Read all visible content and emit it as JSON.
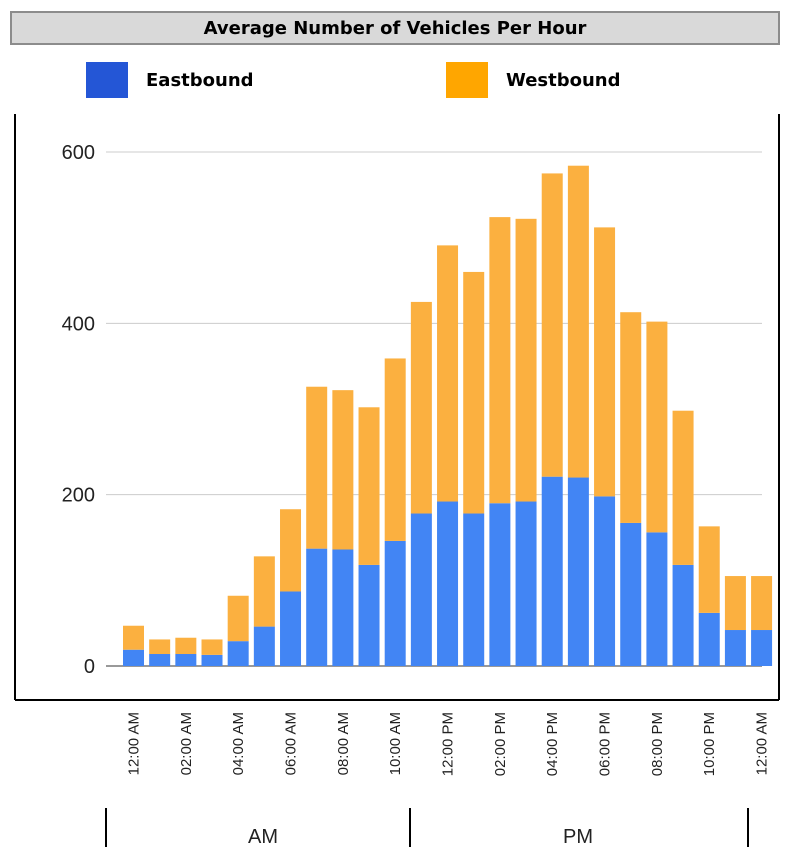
{
  "title": "Average Number of Vehicles Per Hour",
  "legend": [
    {
      "label": "Eastbound",
      "color": "#2456d6"
    },
    {
      "label": "Westbound",
      "color": "#ffa600"
    }
  ],
  "chart_data": {
    "type": "bar",
    "stacked": true,
    "title": "Average Number of Vehicles Per Hour",
    "categories": [
      "12:00 AM",
      "01:00 AM",
      "02:00 AM",
      "03:00 AM",
      "04:00 AM",
      "05:00 AM",
      "06:00 AM",
      "07:00 AM",
      "08:00 AM",
      "09:00 AM",
      "10:00 AM",
      "11:00 AM",
      "12:00 PM",
      "01:00 PM",
      "02:00 PM",
      "03:00 PM",
      "04:00 PM",
      "05:00 PM",
      "06:00 PM",
      "07:00 PM",
      "08:00 PM",
      "09:00 PM",
      "10:00 PM",
      "11:00 PM",
      "12:00 AM"
    ],
    "tick_labels": [
      "12:00 AM",
      "",
      "02:00 AM",
      "",
      "04:00 AM",
      "",
      "06:00 AM",
      "",
      "08:00 AM",
      "",
      "10:00 AM",
      "",
      "12:00 PM",
      "",
      "02:00 PM",
      "",
      "04:00 PM",
      "",
      "06:00 PM",
      "",
      "08:00 PM",
      "",
      "10:00 PM",
      "",
      "12:00 AM"
    ],
    "series": [
      {
        "name": "Eastbound",
        "color": "#4285f4",
        "values": [
          19,
          14,
          14,
          13,
          29,
          46,
          87,
          137,
          136,
          118,
          146,
          178,
          192,
          178,
          190,
          192,
          221,
          220,
          198,
          167,
          156,
          118,
          62,
          42,
          42
        ]
      },
      {
        "name": "Westbound",
        "color": "#fbb040",
        "values": [
          28,
          17,
          19,
          18,
          53,
          82,
          96,
          189,
          186,
          184,
          213,
          247,
          299,
          282,
          334,
          330,
          354,
          364,
          314,
          246,
          246,
          180,
          101,
          63,
          63
        ]
      }
    ],
    "ylim": [
      0,
      600
    ],
    "yticks": [
      0,
      200,
      400,
      600
    ],
    "grid": true,
    "legend_position": "top",
    "groups": [
      {
        "label": "AM",
        "span": [
          0,
          11
        ]
      },
      {
        "label": "PM",
        "span": [
          12,
          24
        ]
      }
    ],
    "xlabel": "",
    "ylabel": ""
  }
}
